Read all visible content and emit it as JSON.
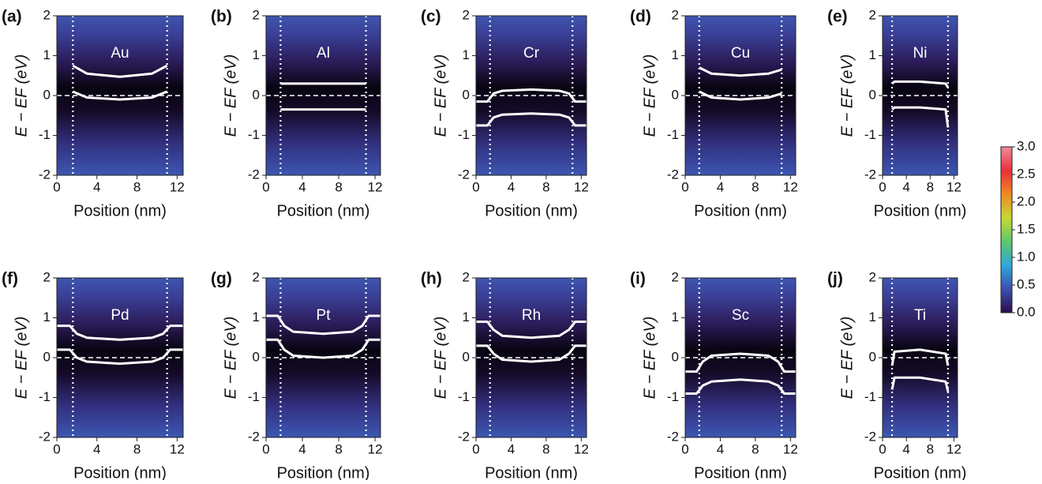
{
  "chart_data": [
    {
      "type": "line",
      "label": "(a)",
      "title": "Au",
      "xlabel": "Position (nm)",
      "ylabel": "E − EF (eV)",
      "x": [
        1.6,
        3,
        6.3,
        9.5,
        11
      ],
      "xlim": [
        0,
        12.6
      ],
      "ylim": [
        -2,
        2
      ],
      "xticks": [
        0,
        4,
        8,
        12
      ],
      "yticks": [
        -2,
        -1,
        0,
        1,
        2
      ],
      "hline": 0,
      "vlines": [
        1.6,
        11
      ],
      "series": [
        {
          "color": "#ffffff",
          "values": [
            0.75,
            0.55,
            0.47,
            0.55,
            0.75
          ]
        },
        {
          "color": "#ffffff",
          "values": [
            0.1,
            -0.05,
            -0.1,
            -0.05,
            0.1
          ]
        }
      ]
    },
    {
      "type": "line",
      "label": "(b)",
      "title": "Al",
      "xlabel": "Position (nm)",
      "ylabel": "E − EF (eV)",
      "x": [
        1.6,
        11
      ],
      "xlim": [
        0,
        12.6
      ],
      "ylim": [
        -2,
        2
      ],
      "xticks": [
        0,
        4,
        8,
        12
      ],
      "yticks": [
        -2,
        -1,
        0,
        1,
        2
      ],
      "hline": 0,
      "vlines": [
        1.6,
        11
      ],
      "series": [
        {
          "color": "#ffffff",
          "values": [
            0.3,
            0.3
          ]
        },
        {
          "color": "#ffffff",
          "values": [
            -0.35,
            -0.35
          ]
        }
      ]
    },
    {
      "type": "line",
      "label": "(c)",
      "title": "Cr",
      "xlabel": "Position (nm)",
      "ylabel": "E − EF (eV)",
      "x": [
        0,
        1.3,
        2,
        3,
        6.3,
        9.5,
        10.6,
        11.3,
        12.6
      ],
      "xlim": [
        0,
        12.6
      ],
      "ylim": [
        -2,
        2
      ],
      "xticks": [
        0,
        4,
        8,
        12
      ],
      "yticks": [
        -2,
        -1,
        0,
        1,
        2
      ],
      "hline": 0,
      "vlines": [
        1.6,
        11
      ],
      "series": [
        {
          "color": "#ffffff",
          "values": [
            -0.15,
            -0.15,
            0.05,
            0.12,
            0.15,
            0.12,
            0.05,
            -0.15,
            -0.15
          ]
        },
        {
          "color": "#ffffff",
          "values": [
            -0.75,
            -0.75,
            -0.55,
            -0.48,
            -0.45,
            -0.48,
            -0.55,
            -0.75,
            -0.75
          ]
        }
      ]
    },
    {
      "type": "line",
      "label": "(d)",
      "title": "Cu",
      "xlabel": "Position (nm)",
      "ylabel": "E − EF (eV)",
      "x": [
        1.6,
        3,
        6.3,
        9.5,
        11
      ],
      "xlim": [
        0,
        12.6
      ],
      "ylim": [
        -2,
        2
      ],
      "xticks": [
        0,
        4,
        8,
        12
      ],
      "yticks": [
        -2,
        -1,
        0,
        1,
        2
      ],
      "hline": 0,
      "vlines": [
        1.6,
        11
      ],
      "series": [
        {
          "color": "#ffffff",
          "values": [
            0.7,
            0.55,
            0.5,
            0.55,
            0.65
          ]
        },
        {
          "color": "#ffffff",
          "values": [
            0.1,
            -0.05,
            -0.1,
            -0.05,
            0.05
          ]
        }
      ]
    },
    {
      "type": "line",
      "label": "(e)",
      "title": "Ni",
      "xlabel": "Position (nm)",
      "ylabel": "E − EF (eV)",
      "x": [
        1.6,
        2,
        6.3,
        10.6,
        11
      ],
      "xlim": [
        0,
        12.6
      ],
      "ylim": [
        -2,
        2
      ],
      "xticks": [
        0,
        4,
        8,
        12
      ],
      "yticks": [
        -2,
        -1,
        0,
        1,
        2
      ],
      "hline": 0,
      "vlines": [
        1.6,
        11
      ],
      "series": [
        {
          "color": "#ffffff",
          "values": [
            0.3,
            0.35,
            0.35,
            0.3,
            0.2
          ]
        },
        {
          "color": "#ffffff",
          "values": [
            -0.35,
            -0.3,
            -0.3,
            -0.35,
            -0.8
          ]
        }
      ]
    },
    {
      "type": "line",
      "label": "(f)",
      "title": "Pd",
      "xlabel": "Position (nm)",
      "ylabel": "E − EF (eV)",
      "x": [
        0,
        1.3,
        2,
        3,
        6.3,
        9.5,
        10.6,
        11.3,
        12.6
      ],
      "xlim": [
        0,
        12.6
      ],
      "ylim": [
        -2,
        2
      ],
      "xticks": [
        0,
        4,
        8,
        12
      ],
      "yticks": [
        -2,
        -1,
        0,
        1,
        2
      ],
      "hline": 0,
      "vlines": [
        1.6,
        11
      ],
      "series": [
        {
          "color": "#ffffff",
          "values": [
            0.8,
            0.8,
            0.6,
            0.5,
            0.45,
            0.5,
            0.6,
            0.8,
            0.8
          ]
        },
        {
          "color": "#ffffff",
          "values": [
            0.2,
            0.2,
            0,
            -0.1,
            -0.15,
            -0.1,
            0,
            0.2,
            0.2
          ]
        }
      ]
    },
    {
      "type": "line",
      "label": "(g)",
      "title": "Pt",
      "xlabel": "Position (nm)",
      "ylabel": "E − EF (eV)",
      "x": [
        0,
        1.3,
        2,
        3,
        6.3,
        9.5,
        10.6,
        11.3,
        12.6
      ],
      "xlim": [
        0,
        12.6
      ],
      "ylim": [
        -2,
        2
      ],
      "xticks": [
        0,
        4,
        8,
        12
      ],
      "yticks": [
        -2,
        -1,
        0,
        1,
        2
      ],
      "hline": 0,
      "vlines": [
        1.6,
        11
      ],
      "series": [
        {
          "color": "#ffffff",
          "values": [
            1.05,
            1.05,
            0.8,
            0.65,
            0.6,
            0.65,
            0.8,
            1.05,
            1.05
          ]
        },
        {
          "color": "#ffffff",
          "values": [
            0.45,
            0.45,
            0.2,
            0.05,
            0,
            0.05,
            0.2,
            0.45,
            0.45
          ]
        }
      ]
    },
    {
      "type": "line",
      "label": "(h)",
      "title": "Rh",
      "xlabel": "Position (nm)",
      "ylabel": "E − EF (eV)",
      "x": [
        0,
        1.3,
        2,
        3,
        6.3,
        9.5,
        10.6,
        11.3,
        12.6
      ],
      "xlim": [
        0,
        12.6
      ],
      "ylim": [
        -2,
        2
      ],
      "xticks": [
        0,
        4,
        8,
        12
      ],
      "yticks": [
        -2,
        -1,
        0,
        1,
        2
      ],
      "hline": 0,
      "vlines": [
        1.6,
        11
      ],
      "series": [
        {
          "color": "#ffffff",
          "values": [
            0.9,
            0.9,
            0.7,
            0.55,
            0.5,
            0.55,
            0.7,
            0.9,
            0.9
          ]
        },
        {
          "color": "#ffffff",
          "values": [
            0.3,
            0.3,
            0.1,
            -0.05,
            -0.1,
            -0.05,
            0.1,
            0.3,
            0.3
          ]
        }
      ]
    },
    {
      "type": "line",
      "label": "(i)",
      "title": "Sc",
      "xlabel": "Position (nm)",
      "ylabel": "E − EF (eV)",
      "x": [
        0,
        1.3,
        2,
        3,
        6.3,
        9.5,
        10.6,
        11.3,
        12.6
      ],
      "xlim": [
        0,
        12.6
      ],
      "ylim": [
        -2,
        2
      ],
      "xticks": [
        0,
        4,
        8,
        12
      ],
      "yticks": [
        -2,
        -1,
        0,
        1,
        2
      ],
      "hline": 0,
      "vlines": [
        1.6,
        11
      ],
      "series": [
        {
          "color": "#ffffff",
          "values": [
            -0.35,
            -0.35,
            -0.1,
            0.05,
            0.1,
            0.05,
            -0.1,
            -0.35,
            -0.35
          ]
        },
        {
          "color": "#ffffff",
          "values": [
            -0.9,
            -0.9,
            -0.7,
            -0.6,
            -0.55,
            -0.6,
            -0.7,
            -0.9,
            -0.9
          ]
        }
      ]
    },
    {
      "type": "line",
      "label": "(j)",
      "title": "Ti",
      "xlabel": "Position (nm)",
      "ylabel": "E − EF (eV)",
      "x": [
        1.6,
        2,
        6.3,
        10.6,
        11
      ],
      "xlim": [
        0,
        12.6
      ],
      "ylim": [
        -2,
        2
      ],
      "xticks": [
        0,
        4,
        8,
        12
      ],
      "yticks": [
        -2,
        -1,
        0,
        1,
        2
      ],
      "hline": 0,
      "vlines": [
        1.6,
        11
      ],
      "series": [
        {
          "color": "#ffffff",
          "values": [
            -0.2,
            0.15,
            0.2,
            0.1,
            -0.2
          ]
        },
        {
          "color": "#ffffff",
          "values": [
            -0.8,
            -0.5,
            -0.5,
            -0.6,
            -0.85
          ]
        }
      ]
    },
    {
      "type": "colorbar",
      "ylim": [
        0,
        3
      ],
      "yticks": [
        {
          "value": 0,
          "label": "0.0"
        },
        0.5,
        {
          "value": 1,
          "label": "1.0"
        },
        1.5,
        {
          "value": 2,
          "label": "2.0"
        },
        2.5,
        {
          "value": 3,
          "label": "3.0"
        }
      ],
      "colors": [
        "#2c0f4a",
        "#3b4fb0",
        "#2fa8d8",
        "#5ec86a",
        "#c6d834",
        "#f08a24",
        "#e8303a",
        "#f08a9a"
      ]
    }
  ]
}
